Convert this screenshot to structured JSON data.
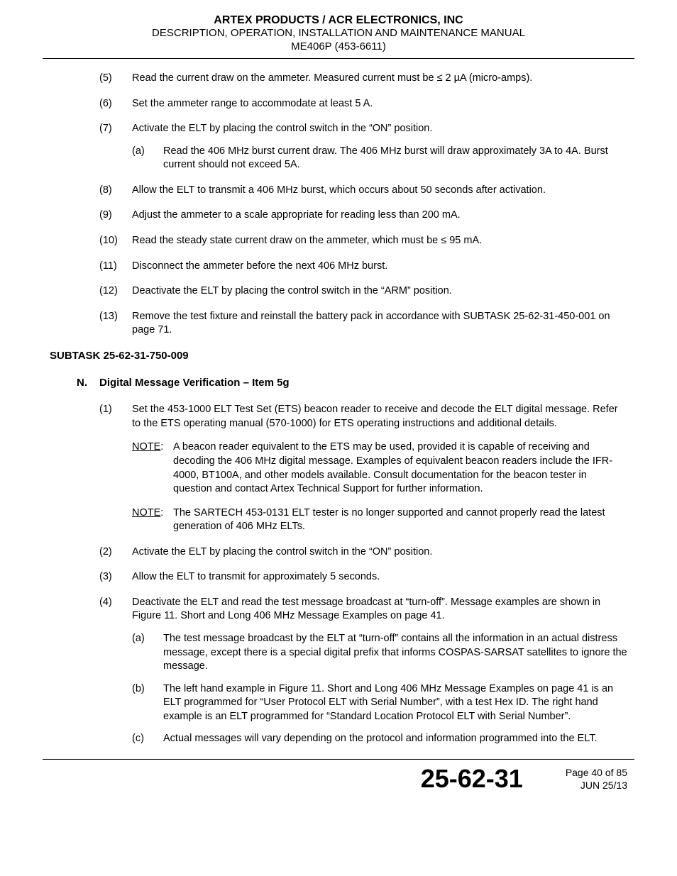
{
  "header": {
    "line1": "ARTEX PRODUCTS / ACR ELECTRONICS, INC",
    "line2": "DESCRIPTION, OPERATION, INSTALLATION AND MAINTENANCE MANUAL",
    "line3": "ME406P (453-6611)"
  },
  "items_top": [
    {
      "n": "(5)",
      "t": "Read the current draw on the ammeter. Measured current must be ≤ 2 µA (micro-amps)."
    },
    {
      "n": "(6)",
      "t": "Set the ammeter range to accommodate at least 5 A."
    },
    {
      "n": "(7)",
      "t": "Activate the ELT by placing the control switch in the “ON” position.",
      "subs": [
        {
          "n": "(a)",
          "t": "Read the 406 MHz burst current draw. The 406 MHz burst will draw approximately 3A to 4A. Burst current should not exceed 5A."
        }
      ]
    },
    {
      "n": "(8)",
      "t": "Allow the ELT to transmit a 406 MHz burst, which occurs about 50 seconds after activation."
    },
    {
      "n": "(9)",
      "t": "Adjust the ammeter to a scale appropriate for reading less than 200 mA."
    },
    {
      "n": "(10)",
      "t": "Read the steady state current draw on the ammeter, which must be ≤ 95 mA."
    },
    {
      "n": "(11)",
      "t": "Disconnect the ammeter before the next 406 MHz burst."
    },
    {
      "n": "(12)",
      "t": "Deactivate the ELT by placing the control switch in the “ARM” position."
    },
    {
      "n": "(13)",
      "t": "Remove the test fixture and reinstall the battery pack in accordance with SUBTASK 25-62-31-450-001 on page 71."
    }
  ],
  "subtask": "SUBTASK 25-62-31-750-009",
  "section": {
    "letter": "N.",
    "title": "Digital Message Verification – Item 5g"
  },
  "items_bottom": [
    {
      "n": "(1)",
      "t": "Set the 453-1000 ELT Test Set (ETS) beacon reader to receive and decode the ELT digital message. Refer to the ETS operating manual (570-1000) for ETS operating instructions and additional details.",
      "notes": [
        {
          "label": "NOTE",
          "t": "A beacon reader equivalent to the ETS may be used, provided it is capable of receiving and decoding the 406 MHz digital message. Examples of equivalent beacon readers include the IFR-4000, BT100A, and other models available. Consult documentation for the beacon tester in question and contact Artex Technical Support for further information."
        },
        {
          "label": "NOTE",
          "t": "The SARTECH 453-0131 ELT tester is no longer supported and cannot properly read the latest generation of 406 MHz ELTs."
        }
      ]
    },
    {
      "n": "(2)",
      "t": "Activate the ELT by placing the control switch in the “ON” position."
    },
    {
      "n": "(3)",
      "t": "Allow the ELT to transmit for approximately 5 seconds."
    },
    {
      "n": "(4)",
      "t": "Deactivate the ELT and read the test message broadcast at “turn-off”. Message examples are shown in Figure 11. Short and Long 406 MHz Message Examples on page 41.",
      "subs": [
        {
          "n": "(a)",
          "t": "The test message broadcast by the ELT at “turn-off” contains all the information in an actual distress message, except there is a special digital prefix that informs COSPAS-SARSAT satellites to ignore the message."
        },
        {
          "n": "(b)",
          "t": "The left hand example in Figure 11. Short and Long 406 MHz Message Examples on page 41 is an ELT programmed for “User Protocol ELT with Serial Number”, with a test Hex ID. The right hand example is an ELT programmed for “Standard Location Protocol ELT with Serial Number”."
        },
        {
          "n": "(c)",
          "t": "Actual messages will vary depending on the protocol and information programmed into the ELT."
        }
      ]
    }
  ],
  "footer": {
    "code": "25-62-31",
    "page": "Page 40 of 85",
    "date": "JUN 25/13"
  }
}
